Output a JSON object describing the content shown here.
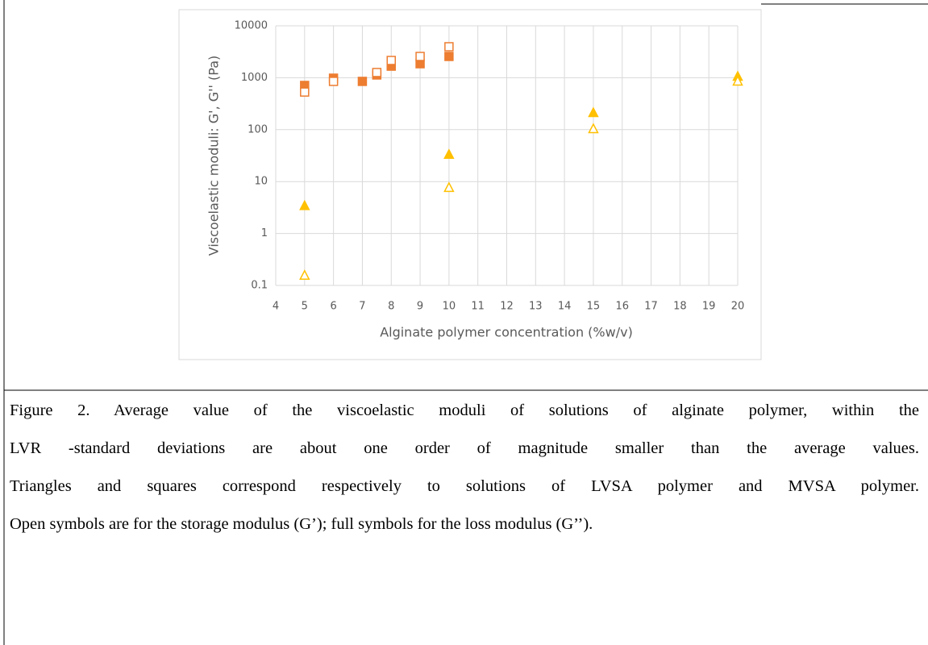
{
  "chart_data": {
    "type": "scatter",
    "xlabel": "Alginate polymer concentration (%w/v)",
    "ylabel": "Viscoelastic moduli: G', G'' (Pa)",
    "xlim": [
      4,
      20
    ],
    "xticks": [
      4,
      5,
      6,
      7,
      8,
      9,
      10,
      11,
      12,
      13,
      14,
      15,
      16,
      17,
      18,
      19,
      20
    ],
    "ylim": [
      0.1,
      10000
    ],
    "yticks": [
      0.1,
      1,
      10,
      100,
      1000,
      10000
    ],
    "ylog": true,
    "grid": true,
    "series": [
      {
        "color": "#ed7d31",
        "marker": "square",
        "filled": true,
        "x": [
          5,
          6,
          7,
          7.5,
          8,
          9,
          10
        ],
        "values": [
          710,
          980,
          850,
          1130,
          1670,
          1860,
          2570
        ]
      },
      {
        "color": "#ed7d31",
        "marker": "square",
        "filled": false,
        "x": [
          5,
          6,
          7.5,
          8,
          9,
          10
        ],
        "values": [
          530,
          850,
          1260,
          2150,
          2570,
          3950
        ]
      },
      {
        "color": "#ffc000",
        "marker": "triangle",
        "filled": true,
        "x": [
          5,
          10,
          15,
          20
        ],
        "values": [
          3.4,
          33,
          210,
          1050
        ]
      },
      {
        "color": "#ffc000",
        "marker": "triangle",
        "filled": false,
        "x": [
          5,
          10,
          15,
          20
        ],
        "values": [
          0.155,
          7.6,
          103,
          850
        ]
      }
    ]
  },
  "caption": {
    "lines": [
      "Figure 2. Average value of the viscoelastic moduli of solutions of alginate polymer, within the",
      "LVR -standard deviations are about one order of magnitude smaller than the average values.",
      "Triangles and squares correspond respectively to solutions of LVSA polymer and MVSA polymer.",
      "Open symbols are for the storage modulus (G’); full symbols for the loss modulus (G’’)."
    ]
  }
}
